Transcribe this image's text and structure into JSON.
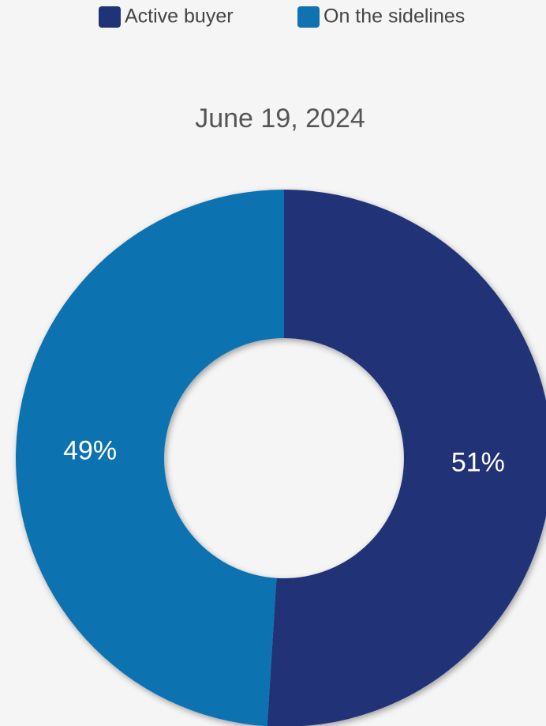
{
  "chart_data": {
    "type": "pie",
    "title": "June 19, 2024",
    "categories": [
      "Active buyer",
      "On the sidelines"
    ],
    "values": [
      51,
      49
    ],
    "value_labels": [
      "51%",
      "49%"
    ],
    "colors": [
      "#213377",
      "#1172b0"
    ],
    "donut": true
  }
}
